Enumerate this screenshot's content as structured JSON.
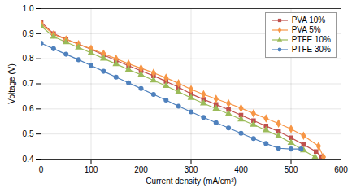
{
  "chart_data": {
    "type": "line",
    "xlabel": "Current density (mA/cm²)",
    "ylabel": "Voltage (V)",
    "xlim": [
      0,
      600
    ],
    "ylim": [
      0.4,
      1.0
    ],
    "xticks": [
      0,
      100,
      200,
      300,
      400,
      500,
      600
    ],
    "yticks": [
      0.4,
      0.5,
      0.6,
      0.7,
      0.8,
      0.9,
      {
        "value": 1.0,
        "label": "1.0"
      }
    ],
    "grid": true,
    "legend": "upper right",
    "series": [
      {
        "name": "PVA 10%",
        "color": "#C0504D",
        "marker": "square",
        "x": [
          0,
          25,
          50,
          75,
          100,
          125,
          150,
          175,
          200,
          225,
          250,
          275,
          300,
          325,
          350,
          375,
          400,
          425,
          450,
          475,
          500,
          525,
          550,
          560
        ],
        "values": [
          0.946,
          0.9,
          0.878,
          0.858,
          0.838,
          0.815,
          0.793,
          0.772,
          0.752,
          0.732,
          0.71,
          0.686,
          0.66,
          0.638,
          0.618,
          0.597,
          0.575,
          0.553,
          0.532,
          0.51,
          0.485,
          0.458,
          0.43,
          0.41
        ]
      },
      {
        "name": "PVA 5%",
        "color": "#F79646",
        "marker": "diamond",
        "x": [
          0,
          25,
          50,
          75,
          100,
          125,
          150,
          175,
          200,
          225,
          250,
          275,
          300,
          325,
          350,
          375,
          400,
          425,
          450,
          475,
          500,
          525,
          555,
          565
        ],
        "values": [
          0.94,
          0.897,
          0.877,
          0.858,
          0.84,
          0.82,
          0.8,
          0.78,
          0.762,
          0.744,
          0.724,
          0.702,
          0.678,
          0.658,
          0.64,
          0.622,
          0.603,
          0.582,
          0.562,
          0.542,
          0.52,
          0.493,
          0.452,
          0.408
        ]
      },
      {
        "name": "PTFE 10%",
        "color": "#9BBB59",
        "marker": "triangle",
        "x": [
          0,
          25,
          50,
          75,
          100,
          125,
          150,
          175,
          200,
          225,
          250,
          275,
          300,
          325,
          350,
          375,
          400,
          425,
          450,
          475,
          500,
          525,
          548
        ],
        "values": [
          0.93,
          0.888,
          0.866,
          0.845,
          0.823,
          0.801,
          0.779,
          0.757,
          0.736,
          0.714,
          0.692,
          0.668,
          0.644,
          0.622,
          0.601,
          0.58,
          0.558,
          0.537,
          0.515,
          0.492,
          0.465,
          0.435,
          0.408
        ]
      },
      {
        "name": "PTFE 30%",
        "color": "#4F81BD",
        "marker": "circle",
        "x": [
          0,
          25,
          50,
          75,
          100,
          125,
          150,
          175,
          200,
          225,
          250,
          275,
          300,
          325,
          350,
          375,
          400,
          425,
          450,
          475,
          500,
          520
        ],
        "values": [
          0.862,
          0.84,
          0.818,
          0.796,
          0.773,
          0.75,
          0.727,
          0.704,
          0.681,
          0.658,
          0.635,
          0.611,
          0.588,
          0.566,
          0.545,
          0.524,
          0.503,
          0.482,
          0.462,
          0.443,
          0.44,
          0.44
        ]
      }
    ]
  }
}
